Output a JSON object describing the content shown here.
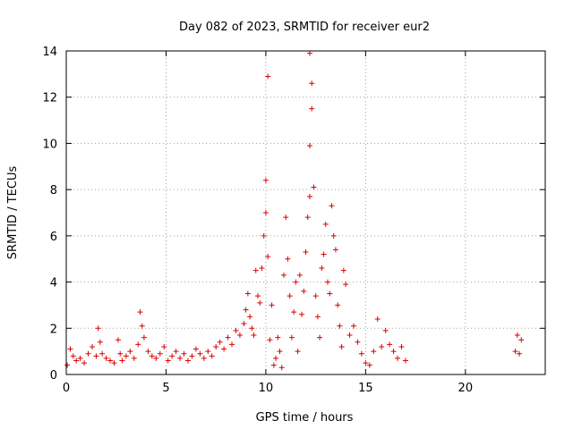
{
  "chart_data": {
    "type": "scatter",
    "title": "Day 082 of 2023, SRMTID for receiver eur2",
    "xlabel": "GPS time / hours",
    "ylabel": "SRMTID / TECUs",
    "xlim": [
      0,
      24.0
    ],
    "ylim": [
      0,
      14
    ],
    "x_ticks": [
      0,
      5,
      10,
      15,
      20
    ],
    "y_ticks": [
      0,
      2,
      4,
      6,
      8,
      10,
      12,
      14
    ],
    "grid": true,
    "marker": "+",
    "colors": {
      "marker": "#dd0000",
      "grid": "#a0a0a0",
      "axis": "#000000"
    },
    "series": [
      {
        "name": "SRMTID",
        "x": [
          0.05,
          0.2,
          0.35,
          0.5,
          0.7,
          0.9,
          1.1,
          1.3,
          1.5,
          1.6,
          1.7,
          1.8,
          2.0,
          2.2,
          2.4,
          2.6,
          2.7,
          2.8,
          3.0,
          3.2,
          3.4,
          3.6,
          3.7,
          3.8,
          3.9,
          4.1,
          4.3,
          4.5,
          4.7,
          4.9,
          5.1,
          5.3,
          5.5,
          5.7,
          5.9,
          6.1,
          6.3,
          6.5,
          6.7,
          6.9,
          7.1,
          7.3,
          7.5,
          7.7,
          7.9,
          8.1,
          8.3,
          8.5,
          8.7,
          8.9,
          9.0,
          9.1,
          9.2,
          9.3,
          9.4,
          9.5,
          9.6,
          9.7,
          9.8,
          9.9,
          10.0,
          10.0,
          10.1,
          10.1,
          10.2,
          10.3,
          10.4,
          10.5,
          10.6,
          10.7,
          10.8,
          10.9,
          11.0,
          11.1,
          11.2,
          11.3,
          11.4,
          11.5,
          11.6,
          11.7,
          11.8,
          11.9,
          12.0,
          12.1,
          12.2,
          12.2,
          12.2,
          12.3,
          12.3,
          12.4,
          12.5,
          12.6,
          12.7,
          12.8,
          12.9,
          13.0,
          13.1,
          13.2,
          13.3,
          13.4,
          13.5,
          13.6,
          13.7,
          13.8,
          13.9,
          14.0,
          14.2,
          14.4,
          14.6,
          14.8,
          15.0,
          15.2,
          15.4,
          15.6,
          15.8,
          16.0,
          16.2,
          16.4,
          16.6,
          16.8,
          17.0,
          22.5,
          22.6,
          22.7,
          22.8
        ],
        "y": [
          0.4,
          1.1,
          0.8,
          0.6,
          0.7,
          0.5,
          0.9,
          1.2,
          0.8,
          2.0,
          1.4,
          0.9,
          0.7,
          0.6,
          0.5,
          1.5,
          0.9,
          0.6,
          0.8,
          1.0,
          0.7,
          1.3,
          2.7,
          2.1,
          1.6,
          1.0,
          0.8,
          0.7,
          0.9,
          1.2,
          0.6,
          0.8,
          1.0,
          0.7,
          0.9,
          0.6,
          0.8,
          1.1,
          0.9,
          0.7,
          1.0,
          0.8,
          1.2,
          1.4,
          1.1,
          1.6,
          1.3,
          1.9,
          1.7,
          2.2,
          2.8,
          3.5,
          2.5,
          2.0,
          1.7,
          4.5,
          3.4,
          3.1,
          4.6,
          6.0,
          7.0,
          8.4,
          12.9,
          5.1,
          1.5,
          3.0,
          0.4,
          0.7,
          1.6,
          1.0,
          0.3,
          4.3,
          6.8,
          5.0,
          3.4,
          1.6,
          2.7,
          4.0,
          1.0,
          4.3,
          2.6,
          3.6,
          5.3,
          6.8,
          7.7,
          9.9,
          13.9,
          12.6,
          11.5,
          8.1,
          3.4,
          2.5,
          1.6,
          4.6,
          5.2,
          6.5,
          4.0,
          3.5,
          7.3,
          6.0,
          5.4,
          3.0,
          2.1,
          1.2,
          4.5,
          3.9,
          1.7,
          2.1,
          1.4,
          0.9,
          0.5,
          0.4,
          1.0,
          2.4,
          1.2,
          1.9,
          1.3,
          1.0,
          0.7,
          1.2,
          0.6,
          1.0,
          1.7,
          0.9,
          1.5
        ]
      }
    ]
  }
}
